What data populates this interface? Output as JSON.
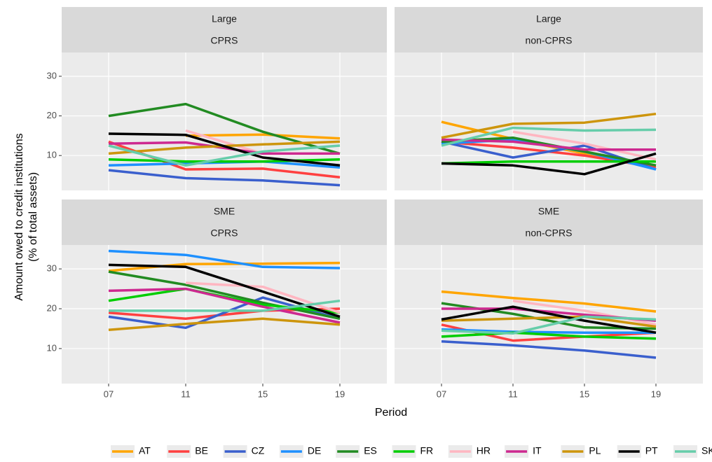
{
  "axis_labels": {
    "x": "Period",
    "y": [
      "Amount owed to credit institutions",
      "(% of total assets)"
    ]
  },
  "chart_data": [
    {
      "type": "line",
      "strip": [
        "Large",
        "CPRS"
      ],
      "categories": [
        "07",
        "11",
        "15",
        "19"
      ],
      "ylim": [
        1.2,
        36
      ],
      "yticks": [
        10,
        20,
        30
      ],
      "grid": true,
      "series": [
        {
          "name": "AT",
          "color": "#FFA500",
          "values": [
            null,
            15,
            15.3,
            14.3
          ]
        },
        {
          "name": "BE",
          "color": "#FF4040",
          "values": [
            13.5,
            6.5,
            6.7,
            4.5
          ]
        },
        {
          "name": "CZ",
          "color": "#3A5FCD",
          "values": [
            6.3,
            4.3,
            3.7,
            2.5
          ]
        },
        {
          "name": "DE",
          "color": "#1E90FF",
          "values": [
            7.5,
            8,
            8.5,
            7
          ]
        },
        {
          "name": "ES",
          "color": "#228B22",
          "values": [
            20,
            23,
            16,
            10.5
          ]
        },
        {
          "name": "FR",
          "color": "#00CD00",
          "values": [
            9,
            8.5,
            8.5,
            9
          ]
        },
        {
          "name": "HR",
          "color": "#FFB6C1",
          "values": [
            null,
            16.3,
            10.5,
            10.5
          ]
        },
        {
          "name": "IT",
          "color": "#CD2990",
          "values": [
            13,
            13.3,
            10.5,
            10.5
          ]
        },
        {
          "name": "PL",
          "color": "#CD950C",
          "values": [
            10.5,
            12,
            12.8,
            13.5
          ]
        },
        {
          "name": "PT",
          "color": "#000000",
          "values": [
            15.5,
            15.2,
            9.5,
            7.5
          ]
        },
        {
          "name": "SK",
          "color": "#66CDAA",
          "values": [
            12.5,
            7.5,
            11,
            12.5
          ]
        }
      ]
    },
    {
      "type": "line",
      "strip": [
        "Large",
        "non-CPRS"
      ],
      "categories": [
        "07",
        "11",
        "15",
        "19"
      ],
      "ylim": [
        1.2,
        36
      ],
      "yticks": [
        10,
        20,
        30
      ],
      "grid": true,
      "series": [
        {
          "name": "AT",
          "color": "#FFA500",
          "values": [
            18.5,
            14.2,
            10.5,
            7.5
          ]
        },
        {
          "name": "BE",
          "color": "#FF4040",
          "values": [
            13.5,
            12,
            10,
            7
          ]
        },
        {
          "name": "CZ",
          "color": "#3A5FCD",
          "values": [
            13.5,
            9.5,
            12.5,
            6.5
          ]
        },
        {
          "name": "DE",
          "color": "#1E90FF",
          "values": [
            13,
            14,
            11,
            6.5
          ]
        },
        {
          "name": "ES",
          "color": "#228B22",
          "values": [
            13.5,
            14.5,
            11,
            7.5
          ]
        },
        {
          "name": "FR",
          "color": "#00CD00",
          "values": [
            8,
            8.5,
            8.5,
            8.5
          ]
        },
        {
          "name": "HR",
          "color": "#FFB6C1",
          "values": [
            null,
            16,
            13,
            9
          ]
        },
        {
          "name": "IT",
          "color": "#CD2990",
          "values": [
            14,
            13.5,
            11.5,
            11.5
          ]
        },
        {
          "name": "PL",
          "color": "#CD950C",
          "values": [
            14.5,
            18,
            18.3,
            20.5
          ]
        },
        {
          "name": "PT",
          "color": "#000000",
          "values": [
            8,
            7.5,
            5.3,
            10.5
          ]
        },
        {
          "name": "SK",
          "color": "#66CDAA",
          "values": [
            12.5,
            17,
            16.3,
            16.5
          ]
        }
      ]
    },
    {
      "type": "line",
      "strip": [
        "SME",
        "CPRS"
      ],
      "categories": [
        "07",
        "11",
        "15",
        "19"
      ],
      "ylim": [
        1.2,
        36
      ],
      "yticks": [
        10,
        20,
        30
      ],
      "grid": true,
      "series": [
        {
          "name": "AT",
          "color": "#FFA500",
          "values": [
            29.5,
            31.2,
            31.3,
            31.5
          ]
        },
        {
          "name": "BE",
          "color": "#FF4040",
          "values": [
            19,
            17.5,
            19.5,
            20
          ]
        },
        {
          "name": "CZ",
          "color": "#3A5FCD",
          "values": [
            18,
            15.2,
            22.8,
            17.5
          ]
        },
        {
          "name": "DE",
          "color": "#1E90FF",
          "values": [
            34.5,
            33.5,
            30.5,
            30.2
          ]
        },
        {
          "name": "ES",
          "color": "#228B22",
          "values": [
            29.3,
            26,
            21.5,
            17.5
          ]
        },
        {
          "name": "FR",
          "color": "#00CD00",
          "values": [
            22,
            25,
            21,
            19
          ]
        },
        {
          "name": "HR",
          "color": "#FFB6C1",
          "values": [
            null,
            26.5,
            25.5,
            19
          ]
        },
        {
          "name": "IT",
          "color": "#CD2990",
          "values": [
            24.5,
            25,
            20.5,
            16.5
          ]
        },
        {
          "name": "PL",
          "color": "#CD950C",
          "values": [
            14.7,
            16.2,
            17.5,
            16
          ]
        },
        {
          "name": "PT",
          "color": "#000000",
          "values": [
            31,
            30.5,
            24.3,
            18
          ]
        },
        {
          "name": "SK",
          "color": "#66CDAA",
          "values": [
            19.5,
            19.5,
            19.5,
            22
          ]
        }
      ]
    },
    {
      "type": "line",
      "strip": [
        "SME",
        "non-CPRS"
      ],
      "categories": [
        "07",
        "11",
        "15",
        "19"
      ],
      "ylim": [
        1.2,
        36
      ],
      "yticks": [
        10,
        20,
        30
      ],
      "grid": true,
      "series": [
        {
          "name": "AT",
          "color": "#FFA500",
          "values": [
            24.3,
            22.7,
            21.3,
            19.3
          ]
        },
        {
          "name": "BE",
          "color": "#FF4040",
          "values": [
            16,
            12,
            13,
            14
          ]
        },
        {
          "name": "CZ",
          "color": "#3A5FCD",
          "values": [
            11.8,
            10.8,
            9.5,
            7.7
          ]
        },
        {
          "name": "DE",
          "color": "#1E90FF",
          "values": [
            14.8,
            14.2,
            14,
            14
          ]
        },
        {
          "name": "ES",
          "color": "#228B22",
          "values": [
            21.4,
            18.7,
            15.3,
            15
          ]
        },
        {
          "name": "FR",
          "color": "#00CD00",
          "values": [
            13,
            14,
            13,
            12.5
          ]
        },
        {
          "name": "HR",
          "color": "#FFB6C1",
          "values": [
            null,
            22,
            19.5,
            16
          ]
        },
        {
          "name": "IT",
          "color": "#CD2990",
          "values": [
            20,
            20,
            18.5,
            17
          ]
        },
        {
          "name": "PL",
          "color": "#CD950C",
          "values": [
            17,
            17.5,
            18,
            15.5
          ]
        },
        {
          "name": "PT",
          "color": "#000000",
          "values": [
            17.3,
            20.5,
            17,
            14
          ]
        },
        {
          "name": "SK",
          "color": "#66CDAA",
          "values": [
            14.5,
            13.8,
            18,
            17.3
          ]
        }
      ]
    }
  ]
}
